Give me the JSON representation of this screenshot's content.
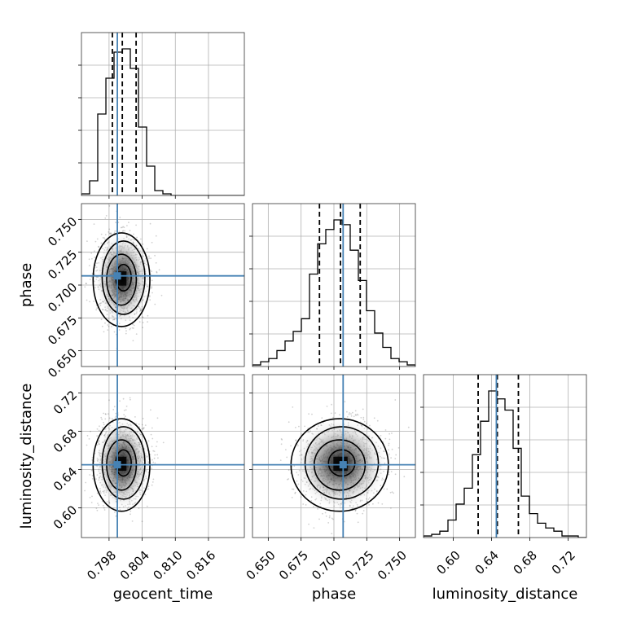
{
  "chart_data": {
    "type": "corner",
    "parameters": [
      "geocent_time",
      "phase",
      "luminosity_distance"
    ],
    "truths": {
      "geocent_time": 0.7995,
      "phase": 0.707,
      "luminosity_distance": 0.645
    },
    "quantiles": {
      "geocent_time": [
        0.7986,
        0.8004,
        0.8029
      ],
      "phase": [
        0.689,
        0.705,
        0.72
      ],
      "luminosity_distance": [
        0.626,
        0.646,
        0.668
      ]
    },
    "axes": {
      "geocent_time": {
        "range": [
          0.793,
          0.8225
        ],
        "ticks": [
          0.798,
          0.804,
          0.81,
          0.816
        ],
        "tick_labels": [
          "0.798",
          "0.804",
          "0.810",
          "0.816"
        ]
      },
      "phase": {
        "range": [
          0.638,
          0.762
        ],
        "ticks": [
          0.65,
          0.675,
          0.7,
          0.725,
          0.75
        ],
        "tick_labels": [
          "0.650",
          "0.675",
          "0.700",
          "0.725",
          "0.750"
        ]
      },
      "luminosity_distance": {
        "range": [
          0.569,
          0.739
        ],
        "ticks": [
          0.6,
          0.64,
          0.68,
          0.72
        ],
        "tick_labels": [
          "0.60",
          "0.64",
          "0.68",
          "0.72"
        ]
      }
    },
    "histograms": {
      "geocent_time": {
        "bin_edges": [
          0.793,
          0.79448,
          0.79595,
          0.79743,
          0.7989,
          0.80038,
          0.80185,
          0.80333,
          0.8048,
          0.80628,
          0.80775,
          0.80923,
          0.8107,
          0.81218,
          0.81365,
          0.81513,
          0.8166,
          0.81808,
          0.81955,
          0.82103,
          0.8225
        ],
        "counts": [
          1,
          9,
          50,
          72,
          88,
          90,
          78,
          42,
          18,
          3,
          1,
          0,
          0,
          0,
          0,
          0,
          0,
          0,
          0,
          0
        ]
      },
      "phase": {
        "bin_edges": [
          0.638,
          0.6442,
          0.6504,
          0.6566,
          0.6628,
          0.669,
          0.6752,
          0.6814,
          0.6876,
          0.6938,
          0.7,
          0.7062,
          0.7124,
          0.7186,
          0.7248,
          0.731,
          0.7372,
          0.7434,
          0.7496,
          0.7558,
          0.762
        ],
        "counts": [
          1,
          3,
          5,
          10,
          16,
          22,
          30,
          58,
          77,
          86,
          92,
          89,
          73,
          54,
          35,
          21,
          12,
          5,
          3,
          1
        ]
      },
      "luminosity_distance": {
        "bin_edges": [
          0.569,
          0.5775,
          0.586,
          0.5945,
          0.603,
          0.6115,
          0.62,
          0.6285,
          0.637,
          0.6455,
          0.654,
          0.6625,
          0.671,
          0.6795,
          0.688,
          0.6965,
          0.705,
          0.7135,
          0.722,
          0.7305,
          0.739
        ],
        "counts": [
          1,
          2,
          4,
          11,
          21,
          31,
          52,
          73,
          92,
          87,
          80,
          56,
          26,
          15,
          9,
          6,
          4,
          1,
          1,
          0
        ]
      }
    },
    "grid": true
  }
}
